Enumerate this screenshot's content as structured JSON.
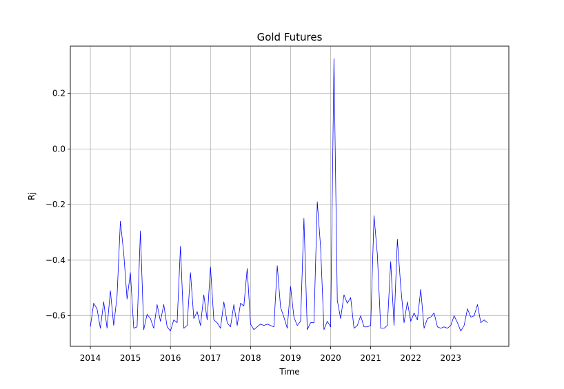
{
  "chart_data": {
    "type": "line",
    "title": "Gold Futures",
    "xlabel": "Time",
    "ylabel": "Rj",
    "xlim": [
      2013.5,
      2024.45
    ],
    "ylim": [
      -0.71,
      0.37
    ],
    "grid": true,
    "x_ticks": [
      2014,
      2015,
      2016,
      2017,
      2018,
      2019,
      2020,
      2021,
      2022,
      2023
    ],
    "x_tick_labels": [
      "2014",
      "2015",
      "2016",
      "2017",
      "2018",
      "2019",
      "2020",
      "2021",
      "2022",
      "2023"
    ],
    "y_ticks": [
      -0.6,
      -0.4,
      -0.2,
      0.0,
      0.2
    ],
    "y_tick_labels": [
      "−0.6",
      "−0.4",
      "−0.2",
      "0.0",
      "0.2"
    ],
    "series": [
      {
        "color": "#0000ff",
        "x_start": 2014,
        "x_step_months": 1,
        "values": [
          -0.64,
          -0.555,
          -0.575,
          -0.645,
          -0.55,
          -0.645,
          -0.51,
          -0.635,
          -0.53,
          -0.26,
          -0.375,
          -0.54,
          -0.445,
          -0.645,
          -0.64,
          -0.295,
          -0.65,
          -0.595,
          -0.61,
          -0.645,
          -0.56,
          -0.62,
          -0.56,
          -0.64,
          -0.655,
          -0.615,
          -0.625,
          -0.35,
          -0.645,
          -0.635,
          -0.445,
          -0.61,
          -0.585,
          -0.635,
          -0.525,
          -0.615,
          -0.425,
          -0.615,
          -0.625,
          -0.645,
          -0.55,
          -0.625,
          -0.64,
          -0.56,
          -0.635,
          -0.555,
          -0.565,
          -0.43,
          -0.63,
          -0.65,
          -0.64,
          -0.63,
          -0.635,
          -0.63,
          -0.635,
          -0.64,
          -0.42,
          -0.57,
          -0.605,
          -0.645,
          -0.495,
          -0.605,
          -0.635,
          -0.62,
          -0.25,
          -0.65,
          -0.625,
          -0.625,
          -0.19,
          -0.355,
          -0.65,
          -0.62,
          -0.64,
          0.325,
          -0.545,
          -0.61,
          -0.525,
          -0.555,
          -0.535,
          -0.645,
          -0.635,
          -0.6,
          -0.64,
          -0.64,
          -0.635,
          -0.24,
          -0.38,
          -0.645,
          -0.645,
          -0.635,
          -0.405,
          -0.635,
          -0.325,
          -0.495,
          -0.625,
          -0.55,
          -0.62,
          -0.59,
          -0.615,
          -0.505,
          -0.645,
          -0.61,
          -0.605,
          -0.59,
          -0.64,
          -0.645,
          -0.64,
          -0.645,
          -0.635,
          -0.6,
          -0.625,
          -0.655,
          -0.635,
          -0.575,
          -0.605,
          -0.6,
          -0.56,
          -0.625,
          -0.615,
          -0.625
        ]
      }
    ]
  }
}
